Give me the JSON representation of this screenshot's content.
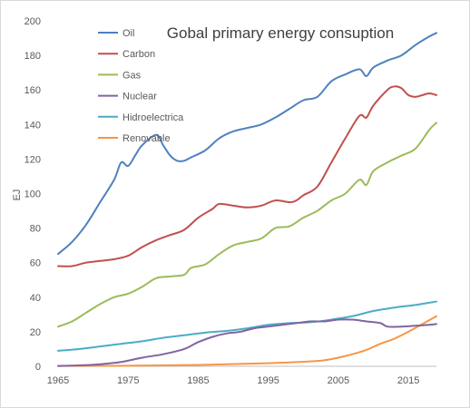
{
  "chart_data": {
    "type": "line",
    "title": "Gobal primary energy consuption",
    "xlabel": "",
    "ylabel": "EJ",
    "xlim": [
      1965,
      2019
    ],
    "ylim": [
      0,
      200
    ],
    "x_ticks": [
      1965,
      1975,
      1985,
      1995,
      2005,
      2015
    ],
    "y_ticks": [
      0,
      20,
      40,
      60,
      80,
      100,
      120,
      140,
      160,
      180,
      200
    ],
    "grid": false,
    "legend_position": "top-left",
    "series": [
      {
        "name": "Oil",
        "color": "#4f81bd",
        "points": [
          [
            1965,
            65
          ],
          [
            1967,
            72
          ],
          [
            1969,
            82
          ],
          [
            1971,
            95
          ],
          [
            1973,
            108
          ],
          [
            1974,
            118
          ],
          [
            1975,
            116
          ],
          [
            1976,
            122
          ],
          [
            1977,
            128
          ],
          [
            1979,
            134
          ],
          [
            1980,
            128
          ],
          [
            1981,
            122
          ],
          [
            1982,
            119
          ],
          [
            1983,
            119
          ],
          [
            1984,
            121
          ],
          [
            1986,
            125
          ],
          [
            1988,
            132
          ],
          [
            1990,
            136
          ],
          [
            1992,
            138
          ],
          [
            1994,
            140
          ],
          [
            1996,
            144
          ],
          [
            1998,
            149
          ],
          [
            2000,
            154
          ],
          [
            2002,
            156
          ],
          [
            2004,
            165
          ],
          [
            2006,
            169
          ],
          [
            2008,
            172
          ],
          [
            2009,
            168
          ],
          [
            2010,
            173
          ],
          [
            2012,
            177
          ],
          [
            2014,
            180
          ],
          [
            2016,
            186
          ],
          [
            2018,
            191
          ],
          [
            2019,
            193
          ]
        ]
      },
      {
        "name": "Carbon",
        "color": "#c0504d",
        "points": [
          [
            1965,
            58
          ],
          [
            1967,
            58
          ],
          [
            1969,
            60
          ],
          [
            1971,
            61
          ],
          [
            1973,
            62
          ],
          [
            1975,
            64
          ],
          [
            1977,
            69
          ],
          [
            1979,
            73
          ],
          [
            1981,
            76
          ],
          [
            1983,
            79
          ],
          [
            1985,
            86
          ],
          [
            1987,
            91
          ],
          [
            1988,
            94
          ],
          [
            1990,
            93
          ],
          [
            1992,
            92
          ],
          [
            1994,
            93
          ],
          [
            1996,
            96
          ],
          [
            1998,
            95
          ],
          [
            1999,
            96
          ],
          [
            2000,
            99
          ],
          [
            2002,
            104
          ],
          [
            2004,
            118
          ],
          [
            2006,
            132
          ],
          [
            2008,
            145
          ],
          [
            2009,
            144
          ],
          [
            2010,
            151
          ],
          [
            2012,
            160
          ],
          [
            2013,
            162
          ],
          [
            2014,
            161
          ],
          [
            2015,
            157
          ],
          [
            2016,
            156
          ],
          [
            2017,
            157
          ],
          [
            2018,
            158
          ],
          [
            2019,
            157
          ]
        ]
      },
      {
        "name": "Gas",
        "color": "#9bbb59",
        "points": [
          [
            1965,
            23
          ],
          [
            1967,
            26
          ],
          [
            1969,
            31
          ],
          [
            1971,
            36
          ],
          [
            1973,
            40
          ],
          [
            1975,
            42
          ],
          [
            1977,
            46
          ],
          [
            1979,
            51
          ],
          [
            1981,
            52
          ],
          [
            1983,
            53
          ],
          [
            1984,
            57
          ],
          [
            1986,
            59
          ],
          [
            1988,
            65
          ],
          [
            1990,
            70
          ],
          [
            1992,
            72
          ],
          [
            1994,
            74
          ],
          [
            1996,
            80
          ],
          [
            1998,
            81
          ],
          [
            2000,
            86
          ],
          [
            2002,
            90
          ],
          [
            2004,
            96
          ],
          [
            2006,
            100
          ],
          [
            2008,
            108
          ],
          [
            2009,
            105
          ],
          [
            2010,
            113
          ],
          [
            2012,
            118
          ],
          [
            2014,
            122
          ],
          [
            2016,
            126
          ],
          [
            2018,
            137
          ],
          [
            2019,
            141
          ]
        ]
      },
      {
        "name": "Nuclear",
        "color": "#8064a2",
        "points": [
          [
            1965,
            0.2
          ],
          [
            1968,
            0.5
          ],
          [
            1971,
            1.2
          ],
          [
            1974,
            2.5
          ],
          [
            1977,
            5
          ],
          [
            1980,
            7
          ],
          [
            1983,
            10
          ],
          [
            1985,
            14
          ],
          [
            1987,
            17
          ],
          [
            1989,
            19
          ],
          [
            1991,
            20
          ],
          [
            1993,
            22
          ],
          [
            1995,
            23
          ],
          [
            1997,
            24
          ],
          [
            1999,
            25
          ],
          [
            2001,
            26
          ],
          [
            2003,
            26
          ],
          [
            2005,
            27
          ],
          [
            2007,
            27
          ],
          [
            2009,
            26
          ],
          [
            2011,
            25
          ],
          [
            2012,
            23
          ],
          [
            2014,
            23
          ],
          [
            2016,
            23.5
          ],
          [
            2018,
            24
          ],
          [
            2019,
            24.5
          ]
        ]
      },
      {
        "name": "Hidroelectrica",
        "color": "#4bacc6",
        "points": [
          [
            1965,
            9
          ],
          [
            1968,
            10
          ],
          [
            1971,
            11.5
          ],
          [
            1974,
            13
          ],
          [
            1977,
            14.5
          ],
          [
            1980,
            16.5
          ],
          [
            1983,
            18
          ],
          [
            1986,
            19.5
          ],
          [
            1989,
            20.5
          ],
          [
            1992,
            22
          ],
          [
            1995,
            24
          ],
          [
            1998,
            25
          ],
          [
            2001,
            25.5
          ],
          [
            2004,
            27
          ],
          [
            2007,
            29
          ],
          [
            2010,
            32
          ],
          [
            2013,
            34
          ],
          [
            2016,
            35.5
          ],
          [
            2019,
            37.5
          ]
        ]
      },
      {
        "name": "Renovable",
        "color": "#f79646",
        "points": [
          [
            1965,
            0.2
          ],
          [
            1975,
            0.3
          ],
          [
            1985,
            0.8
          ],
          [
            1995,
            1.8
          ],
          [
            2000,
            2.6
          ],
          [
            2003,
            3.5
          ],
          [
            2005,
            5
          ],
          [
            2007,
            7
          ],
          [
            2009,
            9.5
          ],
          [
            2011,
            13
          ],
          [
            2013,
            16
          ],
          [
            2015,
            20
          ],
          [
            2017,
            24.5
          ],
          [
            2019,
            29
          ]
        ]
      }
    ]
  }
}
